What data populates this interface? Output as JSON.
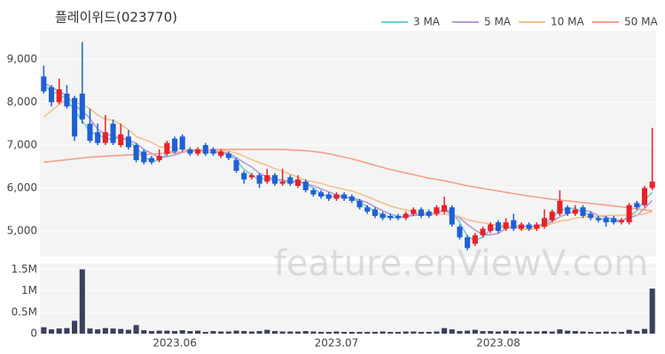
{
  "chart_data": {
    "type": "candlestick",
    "title": "플레이위드(023770)",
    "watermark": "feature.enViewV.com",
    "up_color": "#e8212b",
    "down_color": "#1f5fd6",
    "categories": [
      null,
      null,
      null,
      null,
      null,
      null,
      null,
      null,
      null,
      null,
      null,
      null,
      null,
      null,
      null,
      null,
      null,
      "2023.06",
      null,
      null,
      null,
      null,
      null,
      null,
      null,
      null,
      null,
      null,
      null,
      null,
      null,
      null,
      null,
      null,
      null,
      null,
      null,
      null,
      "2023.07",
      null,
      null,
      null,
      null,
      null,
      null,
      null,
      null,
      null,
      null,
      null,
      null,
      null,
      null,
      null,
      null,
      null,
      null,
      null,
      null,
      "2023.08",
      null,
      null,
      null,
      null,
      null,
      null,
      null,
      null,
      null,
      null,
      null,
      null,
      null,
      null,
      null,
      null,
      null,
      null,
      null,
      null
    ],
    "open": [
      8600,
      8350,
      8000,
      8200,
      8100,
      8200,
      7500,
      7300,
      7050,
      7500,
      7000,
      7200,
      7000,
      6850,
      6700,
      6650,
      6800,
      7150,
      7200,
      6900,
      6800,
      7000,
      6900,
      6750,
      6800,
      6650,
      6350,
      6250,
      6300,
      6150,
      6300,
      6100,
      6250,
      6050,
      6150,
      5950,
      5900,
      5850,
      5750,
      5850,
      5800,
      5700,
      5550,
      5500,
      5400,
      5350,
      5350,
      5300,
      5400,
      5500,
      5450,
      5400,
      5450,
      5550,
      5100,
      4850,
      4700,
      4900,
      5000,
      5200,
      5050,
      5250,
      5050,
      5150,
      5050,
      5100,
      5250,
      5400,
      5550,
      5400,
      5550,
      5400,
      5300,
      5300,
      5300,
      5200,
      5200,
      5650,
      5600,
      6000
    ],
    "high": [
      8850,
      8400,
      8550,
      8400,
      8150,
      9400,
      7850,
      7500,
      7700,
      7600,
      7500,
      7350,
      7050,
      6900,
      6750,
      6900,
      7100,
      7200,
      7250,
      6950,
      6950,
      7050,
      6950,
      6900,
      6850,
      6700,
      6400,
      6350,
      6350,
      6450,
      6350,
      6450,
      6300,
      6300,
      6200,
      6000,
      5950,
      5900,
      5900,
      5900,
      5850,
      5750,
      5600,
      5550,
      5450,
      5400,
      5400,
      5450,
      5550,
      5550,
      5500,
      5600,
      5800,
      5600,
      5150,
      4900,
      4950,
      5100,
      5200,
      5250,
      5300,
      5400,
      5200,
      5200,
      5200,
      5500,
      5500,
      5950,
      5600,
      5600,
      5600,
      5450,
      5350,
      5350,
      5350,
      5300,
      5650,
      5700,
      6050,
      7400
    ],
    "low": [
      8200,
      7900,
      7950,
      7850,
      7100,
      7500,
      7050,
      7000,
      7000,
      7000,
      6950,
      6900,
      6600,
      6550,
      6550,
      6600,
      6750,
      6800,
      6850,
      6750,
      6750,
      6750,
      6750,
      6700,
      6650,
      6350,
      6100,
      6200,
      6000,
      6100,
      6050,
      6050,
      6050,
      6000,
      5900,
      5800,
      5750,
      5700,
      5700,
      5700,
      5650,
      5500,
      5400,
      5300,
      5250,
      5250,
      5250,
      5250,
      5350,
      5300,
      5300,
      5350,
      5400,
      5100,
      4800,
      4550,
      4650,
      4850,
      4950,
      4950,
      5000,
      5000,
      5000,
      5000,
      5000,
      5050,
      5200,
      5350,
      5350,
      5350,
      5300,
      5250,
      5200,
      5100,
      5150,
      5150,
      5150,
      5500,
      5550,
      5950
    ],
    "close": [
      8250,
      8000,
      8300,
      7900,
      7200,
      7600,
      7100,
      7050,
      7300,
      7050,
      7250,
      6950,
      6650,
      6600,
      6600,
      6750,
      7050,
      6850,
      6900,
      6800,
      6900,
      6800,
      6800,
      6850,
      6700,
      6400,
      6200,
      6300,
      6100,
      6300,
      6100,
      6150,
      6100,
      6200,
      5950,
      5850,
      5800,
      5750,
      5850,
      5750,
      5700,
      5550,
      5450,
      5350,
      5300,
      5300,
      5300,
      5400,
      5500,
      5350,
      5350,
      5550,
      5600,
      5150,
      4850,
      4600,
      4900,
      5050,
      5150,
      5000,
      5200,
      5050,
      5150,
      5050,
      5150,
      5300,
      5450,
      5700,
      5400,
      5500,
      5350,
      5300,
      5250,
      5200,
      5200,
      5250,
      5600,
      5550,
      6000,
      6150
    ],
    "ma": [
      {
        "name": "3 MA",
        "color": "#6fcfcf",
        "values": [
          8400,
          8250,
          8183,
          8067,
          7800,
          7567,
          7300,
          7250,
          7150,
          7133,
          7200,
          7083,
          6950,
          6733,
          6617,
          6650,
          6800,
          6883,
          6933,
          6850,
          6867,
          6833,
          6833,
          6817,
          6783,
          6650,
          6433,
          6300,
          6200,
          6233,
          6167,
          6183,
          6117,
          6150,
          6083,
          6000,
          5867,
          5800,
          5800,
          5783,
          5767,
          5667,
          5567,
          5450,
          5367,
          5317,
          5300,
          5333,
          5400,
          5417,
          5400,
          5417,
          5500,
          5433,
          5200,
          4867,
          4783,
          4850,
          5033,
          5067,
          5117,
          5083,
          5133,
          5083,
          5117,
          5167,
          5300,
          5483,
          5517,
          5533,
          5417,
          5383,
          5300,
          5250,
          5217,
          5217,
          5350,
          5467,
          5717,
          5900
        ]
      },
      {
        "name": "5 MA",
        "color": "#b39ddb",
        "values": [
          8450,
          8350,
          8250,
          8150,
          7930,
          7800,
          7620,
          7370,
          7250,
          7220,
          7150,
          7120,
          7040,
          6900,
          6810,
          6710,
          6730,
          6770,
          6830,
          6870,
          6900,
          6850,
          6840,
          6830,
          6810,
          6710,
          6590,
          6490,
          6340,
          6260,
          6200,
          6190,
          6150,
          6170,
          6100,
          6050,
          5980,
          5910,
          5840,
          5800,
          5770,
          5720,
          5660,
          5560,
          5470,
          5390,
          5340,
          5330,
          5360,
          5370,
          5380,
          5430,
          5470,
          5400,
          5300,
          5150,
          5020,
          4910,
          4910,
          4940,
          5060,
          5090,
          5110,
          5090,
          5120,
          5140,
          5220,
          5330,
          5400,
          5470,
          5480,
          5450,
          5360,
          5320,
          5260,
          5240,
          5300,
          5360,
          5520,
          5710
        ]
      },
      {
        "name": "10 MA",
        "color": "#f5c28a",
        "values": [
          7650,
          7800,
          7950,
          8050,
          8000,
          7950,
          7850,
          7700,
          7600,
          7580,
          7480,
          7360,
          7200,
          7130,
          7070,
          6960,
          6960,
          6940,
          6900,
          6880,
          6850,
          6840,
          6850,
          6870,
          6860,
          6810,
          6740,
          6660,
          6590,
          6530,
          6450,
          6390,
          6320,
          6250,
          6180,
          6150,
          6110,
          6050,
          6010,
          5970,
          5930,
          5870,
          5800,
          5720,
          5650,
          5580,
          5530,
          5490,
          5450,
          5410,
          5380,
          5380,
          5390,
          5370,
          5330,
          5260,
          5220,
          5190,
          5160,
          5130,
          5120,
          5090,
          5040,
          5030,
          5060,
          5110,
          5170,
          5230,
          5250,
          5300,
          5320,
          5340,
          5350,
          5360,
          5360,
          5360,
          5380,
          5370,
          5400,
          5450
        ]
      },
      {
        "name": "50 MA",
        "color": "#f4a08a",
        "values": [
          6600,
          6620,
          6640,
          6660,
          6680,
          6700,
          6720,
          6730,
          6740,
          6750,
          6760,
          6770,
          6780,
          6780,
          6790,
          6800,
          6810,
          6820,
          6840,
          6860,
          6880,
          6890,
          6900,
          6900,
          6900,
          6900,
          6900,
          6900,
          6900,
          6900,
          6900,
          6900,
          6890,
          6880,
          6870,
          6850,
          6830,
          6800,
          6760,
          6720,
          6680,
          6630,
          6580,
          6530,
          6480,
          6430,
          6390,
          6350,
          6310,
          6270,
          6230,
          6200,
          6170,
          6130,
          6090,
          6050,
          6020,
          5990,
          5960,
          5930,
          5900,
          5870,
          5840,
          5810,
          5790,
          5760,
          5740,
          5720,
          5700,
          5680,
          5660,
          5640,
          5620,
          5600,
          5580,
          5560,
          5540,
          5510,
          5490,
          5470
        ]
      }
    ],
    "ylim": [
      4400,
      9660
    ],
    "yticks": [
      {
        "value": 5000,
        "label": "5,000"
      },
      {
        "value": 6000,
        "label": "6,000"
      },
      {
        "value": 7000,
        "label": "7,000"
      },
      {
        "value": 8000,
        "label": "8,000"
      },
      {
        "value": 9000,
        "label": "9,000"
      }
    ],
    "grid": true,
    "volume": {
      "color": "#3c3f5e",
      "values": [
        150000,
        100000,
        120000,
        130000,
        300000,
        1500000,
        120000,
        100000,
        130000,
        120000,
        110000,
        90000,
        200000,
        80000,
        60000,
        70000,
        70000,
        60000,
        80000,
        60000,
        70000,
        40000,
        60000,
        50000,
        50000,
        70000,
        60000,
        50000,
        60000,
        90000,
        60000,
        50000,
        50000,
        50000,
        60000,
        50000,
        40000,
        40000,
        50000,
        40000,
        40000,
        40000,
        40000,
        40000,
        50000,
        40000,
        40000,
        50000,
        50000,
        40000,
        40000,
        50000,
        130000,
        100000,
        60000,
        70000,
        90000,
        60000,
        60000,
        50000,
        70000,
        60000,
        50000,
        50000,
        50000,
        60000,
        50000,
        100000,
        70000,
        60000,
        50000,
        40000,
        40000,
        50000,
        40000,
        40000,
        90000,
        60000,
        110000,
        1050000
      ],
      "ylim": [
        0,
        1630000
      ],
      "yticks": [
        0,
        {
          "value": 500000,
          "label": "0.5M"
        },
        {
          "value": 1000000,
          "label": "1M"
        },
        {
          "value": 1500000,
          "label": "1.5M"
        }
      ]
    }
  }
}
